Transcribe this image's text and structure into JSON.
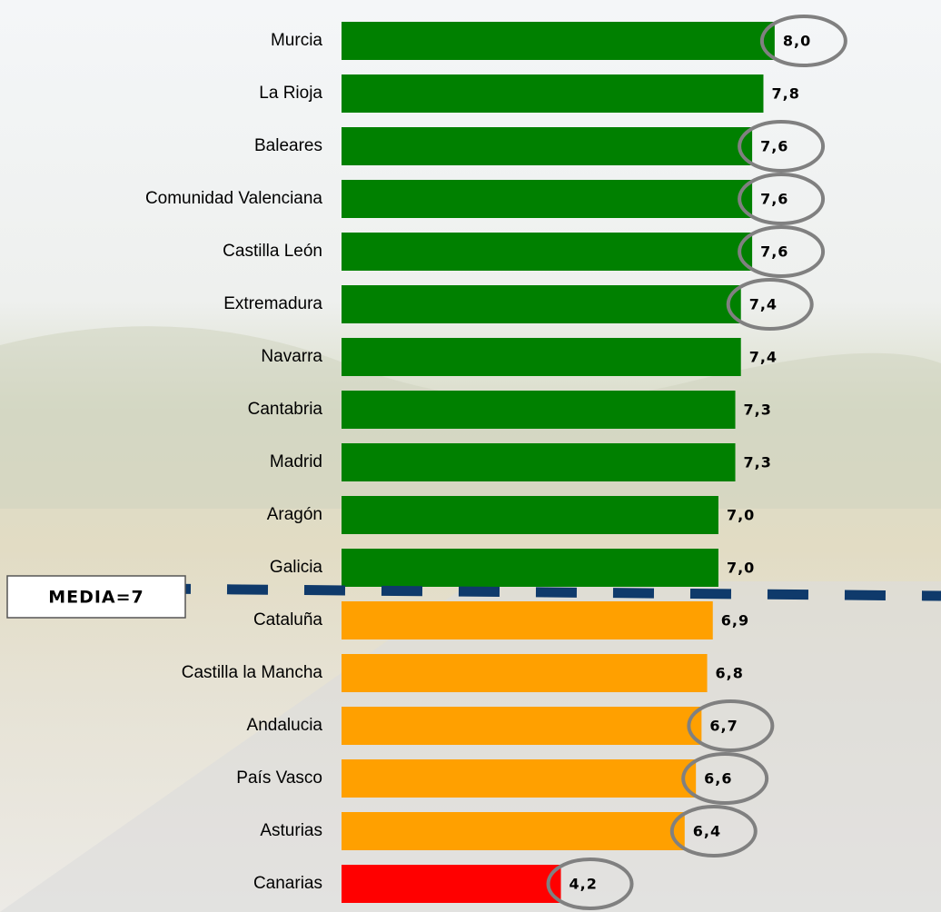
{
  "chart_data": {
    "type": "hbar",
    "categories": [
      "Murcia",
      "La Rioja",
      "Baleares",
      "Comunidad Valenciana",
      "Castilla León",
      "Extremadura",
      "Navarra",
      "Cantabria",
      "Madrid",
      "Aragón",
      "Galicia",
      "Cataluña",
      "Castilla la Mancha",
      "Andalucia",
      "País Vasco",
      "Asturias",
      "Canarias"
    ],
    "values": [
      8.0,
      7.8,
      7.6,
      7.6,
      7.6,
      7.4,
      7.4,
      7.3,
      7.3,
      7.0,
      7.0,
      6.9,
      6.8,
      6.7,
      6.6,
      6.4,
      4.2
    ],
    "value_labels": [
      "8,0",
      "7,8",
      "7,6",
      "7,6",
      "7,6",
      "7,4",
      "7,4",
      "7,3",
      "7,3",
      "7,0",
      "7,0",
      "6,9",
      "6,8",
      "6,7",
      "6,6",
      "6,4",
      "4,2"
    ],
    "colors": [
      "#008000",
      "#008000",
      "#008000",
      "#008000",
      "#008000",
      "#008000",
      "#008000",
      "#008000",
      "#008000",
      "#008000",
      "#008000",
      "#ffa000",
      "#ffa000",
      "#ffa000",
      "#ffa000",
      "#ffa000",
      "#ff0000"
    ],
    "circled": [
      true,
      false,
      true,
      true,
      true,
      true,
      false,
      false,
      false,
      false,
      false,
      false,
      false,
      true,
      true,
      true,
      true
    ],
    "xlim": [
      0.3,
      9.1
    ],
    "annotation": "MEDIA=7"
  }
}
